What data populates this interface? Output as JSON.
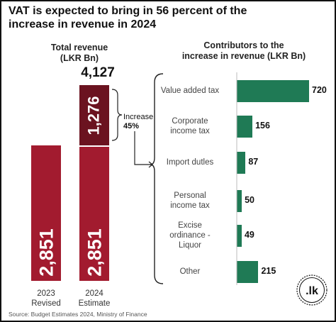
{
  "title_line1": "VAT is expected to bring in 56 percent of the",
  "title_line2": "increase in revenue in 2024",
  "left_title_line1": "Total revenue",
  "left_title_line2": "(LKR Bn)",
  "right_title_line1": "Contributors to the",
  "right_title_line2": "increase in revenue (LKR Bn)",
  "increase_label": "Increase",
  "increase_pct": "45%",
  "total_2024_label": "4,127",
  "source": "Source: Budget Estimates 2024, Ministry of Finance",
  "logo_text": ".lk",
  "colors": {
    "base_bar": "#a21b2f",
    "increase_bar": "#6b1320",
    "contributor_bar": "#1f7a55"
  },
  "chart_data": [
    {
      "type": "bar",
      "stacked": true,
      "title": "Total revenue (LKR Bn)",
      "categories": [
        {
          "line1": "2023",
          "line2": "Revised"
        },
        {
          "line1": "2024",
          "line2": "Estimate"
        }
      ],
      "series": [
        {
          "values": [
            2851,
            2851
          ],
          "labels": [
            "2,851",
            "2,851"
          ]
        },
        {
          "values": [
            0,
            1276
          ],
          "labels": [
            "",
            "1,276"
          ]
        }
      ],
      "totals": [
        2851,
        4127
      ]
    },
    {
      "type": "bar",
      "orientation": "horizontal",
      "title": "Contributors to the increase in revenue (LKR Bn)",
      "categories": [
        {
          "line1": "Value added tax",
          "line2": "",
          "line3": ""
        },
        {
          "line1": "Corporate",
          "line2": "income tax",
          "line3": ""
        },
        {
          "line1": "Import dutles",
          "line2": "",
          "line3": ""
        },
        {
          "line1": "Personal",
          "line2": "income tax",
          "line3": ""
        },
        {
          "line1": "Excise",
          "line2": "ordinance -",
          "line3": "Liquor"
        },
        {
          "line1": "Other",
          "line2": "",
          "line3": ""
        }
      ],
      "values": [
        720,
        156,
        87,
        50,
        49,
        215
      ],
      "value_labels": [
        "720",
        "156",
        "87",
        "50",
        "49",
        "215"
      ]
    }
  ]
}
